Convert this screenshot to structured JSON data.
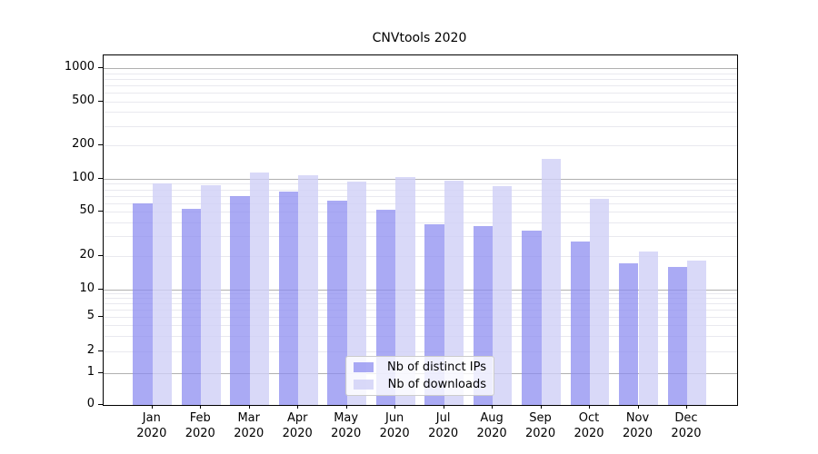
{
  "chart_data": {
    "type": "bar",
    "title": "CNVtools 2020",
    "xlabel": "",
    "ylabel": "",
    "x_year_label": "2020",
    "categories": [
      "Jan",
      "Feb",
      "Mar",
      "Apr",
      "May",
      "Jun",
      "Jul",
      "Aug",
      "Sep",
      "Oct",
      "Nov",
      "Dec"
    ],
    "series": [
      {
        "name": "Nb of distinct IPs",
        "color": "rgba(138,138,240,0.73)",
        "values": [
          60,
          53,
          69,
          77,
          63,
          52,
          39,
          37,
          34,
          27,
          17,
          16
        ]
      },
      {
        "name": "Nb of downloads",
        "color": "rgba(207,207,246,0.80)",
        "values": [
          90,
          88,
          113,
          107,
          94,
          104,
          96,
          86,
          150,
          66,
          22,
          18
        ]
      }
    ],
    "y_scale": "symlog",
    "y_ticks": [
      0,
      1,
      2,
      5,
      10,
      20,
      50,
      100,
      200,
      500,
      1000
    ],
    "ylim": [
      0,
      1300
    ],
    "grid": {
      "major_on": true,
      "minor_on": true,
      "major_color": "#b0b0b0",
      "minor_color": "#e9e9ef"
    },
    "legend": {
      "position": "lower center",
      "entries": [
        "Nb of distinct IPs",
        "Nb of downloads"
      ]
    },
    "colors": {
      "background": "#ffffff",
      "axis": "#000000",
      "bar_ips": "#8a8af0",
      "bar_downloads": "#cfcff6"
    }
  }
}
